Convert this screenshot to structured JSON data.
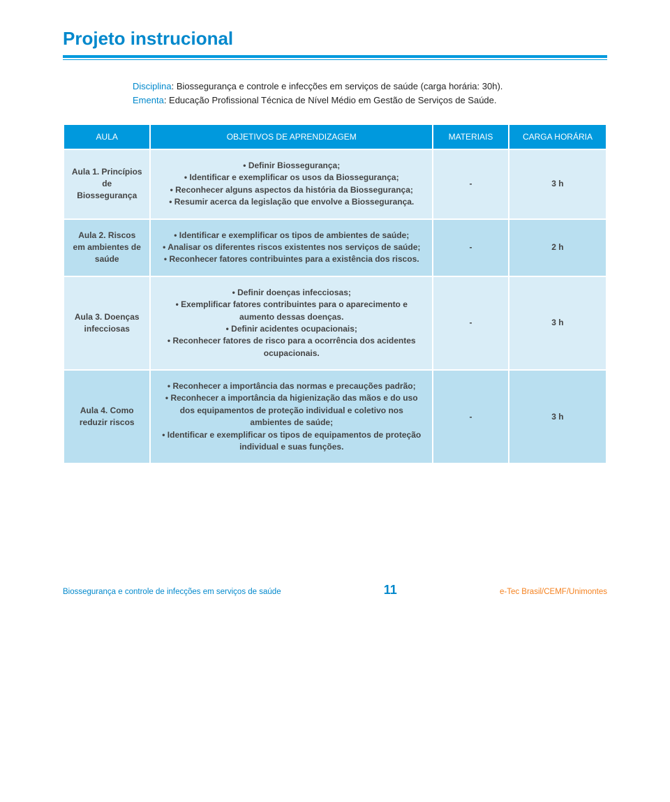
{
  "title": "Projeto instrucional",
  "intro": {
    "disc_label": "Disciplina",
    "disc_text": ": Biossegurança e controle e infecções em serviços de saúde (carga horária: 30h).",
    "ementa_label": "Ementa",
    "ementa_text": ": Educação Profissional Técnica de Nível Médio em Gestão de Serviços de Saúde."
  },
  "headers": {
    "aula": "AULA",
    "obj": "OBJETIVOS DE APRENDIZAGEM",
    "mat": "MATERIAIS",
    "carga": "CARGA HORÁRIA"
  },
  "rows": [
    {
      "aula": "Aula 1. Princípios de Biossegurança",
      "obj": "• Definir Biossegurança;\n• Identificar e exemplificar os usos da Biossegurança;\n• Reconhecer alguns aspectos da história da Biossegurança;\n• Resumir acerca da legislação que envolve a Biossegurança.",
      "mat": "-",
      "carga": "3 h"
    },
    {
      "aula": "Aula 2. Riscos em ambientes de saúde",
      "obj": "• Identificar e exemplificar os tipos de ambientes de saúde;\n• Analisar os diferentes riscos existentes nos serviços de saúde;\n• Reconhecer fatores contribuintes para a existência dos riscos.",
      "mat": "-",
      "carga": "2 h"
    },
    {
      "aula": "Aula 3. Doenças infecciosas",
      "obj": "• Definir doenças infecciosas;\n• Exemplificar fatores contribuintes para o aparecimento e aumento dessas doenças.\n• Definir acidentes ocupacionais;\n• Reconhecer fatores de risco para a ocorrência dos acidentes ocupacionais.",
      "mat": "-",
      "carga": "3 h"
    },
    {
      "aula": "Aula 4. Como reduzir riscos",
      "obj": "• Reconhecer a importância das normas e precauções padrão;\n• Reconhecer a importância da higienização das mãos e do uso dos equipamentos de proteção individual e coletivo nos ambientes de saúde;\n• Identificar e exemplificar os tipos de equipamentos de proteção individual e suas funções.",
      "mat": "-",
      "carga": "3 h"
    }
  ],
  "footer": {
    "left": "Biossegurança e controle de infecções em serviços de saúde",
    "page": "11",
    "right": "e-Tec Brasil/CEMF/Unimontes"
  },
  "colors": {
    "header_bg": "#0099dd",
    "row_light": "#d9edf7",
    "row_dark": "#b9dff0",
    "accent": "#0088cc",
    "orange": "#f58220"
  }
}
